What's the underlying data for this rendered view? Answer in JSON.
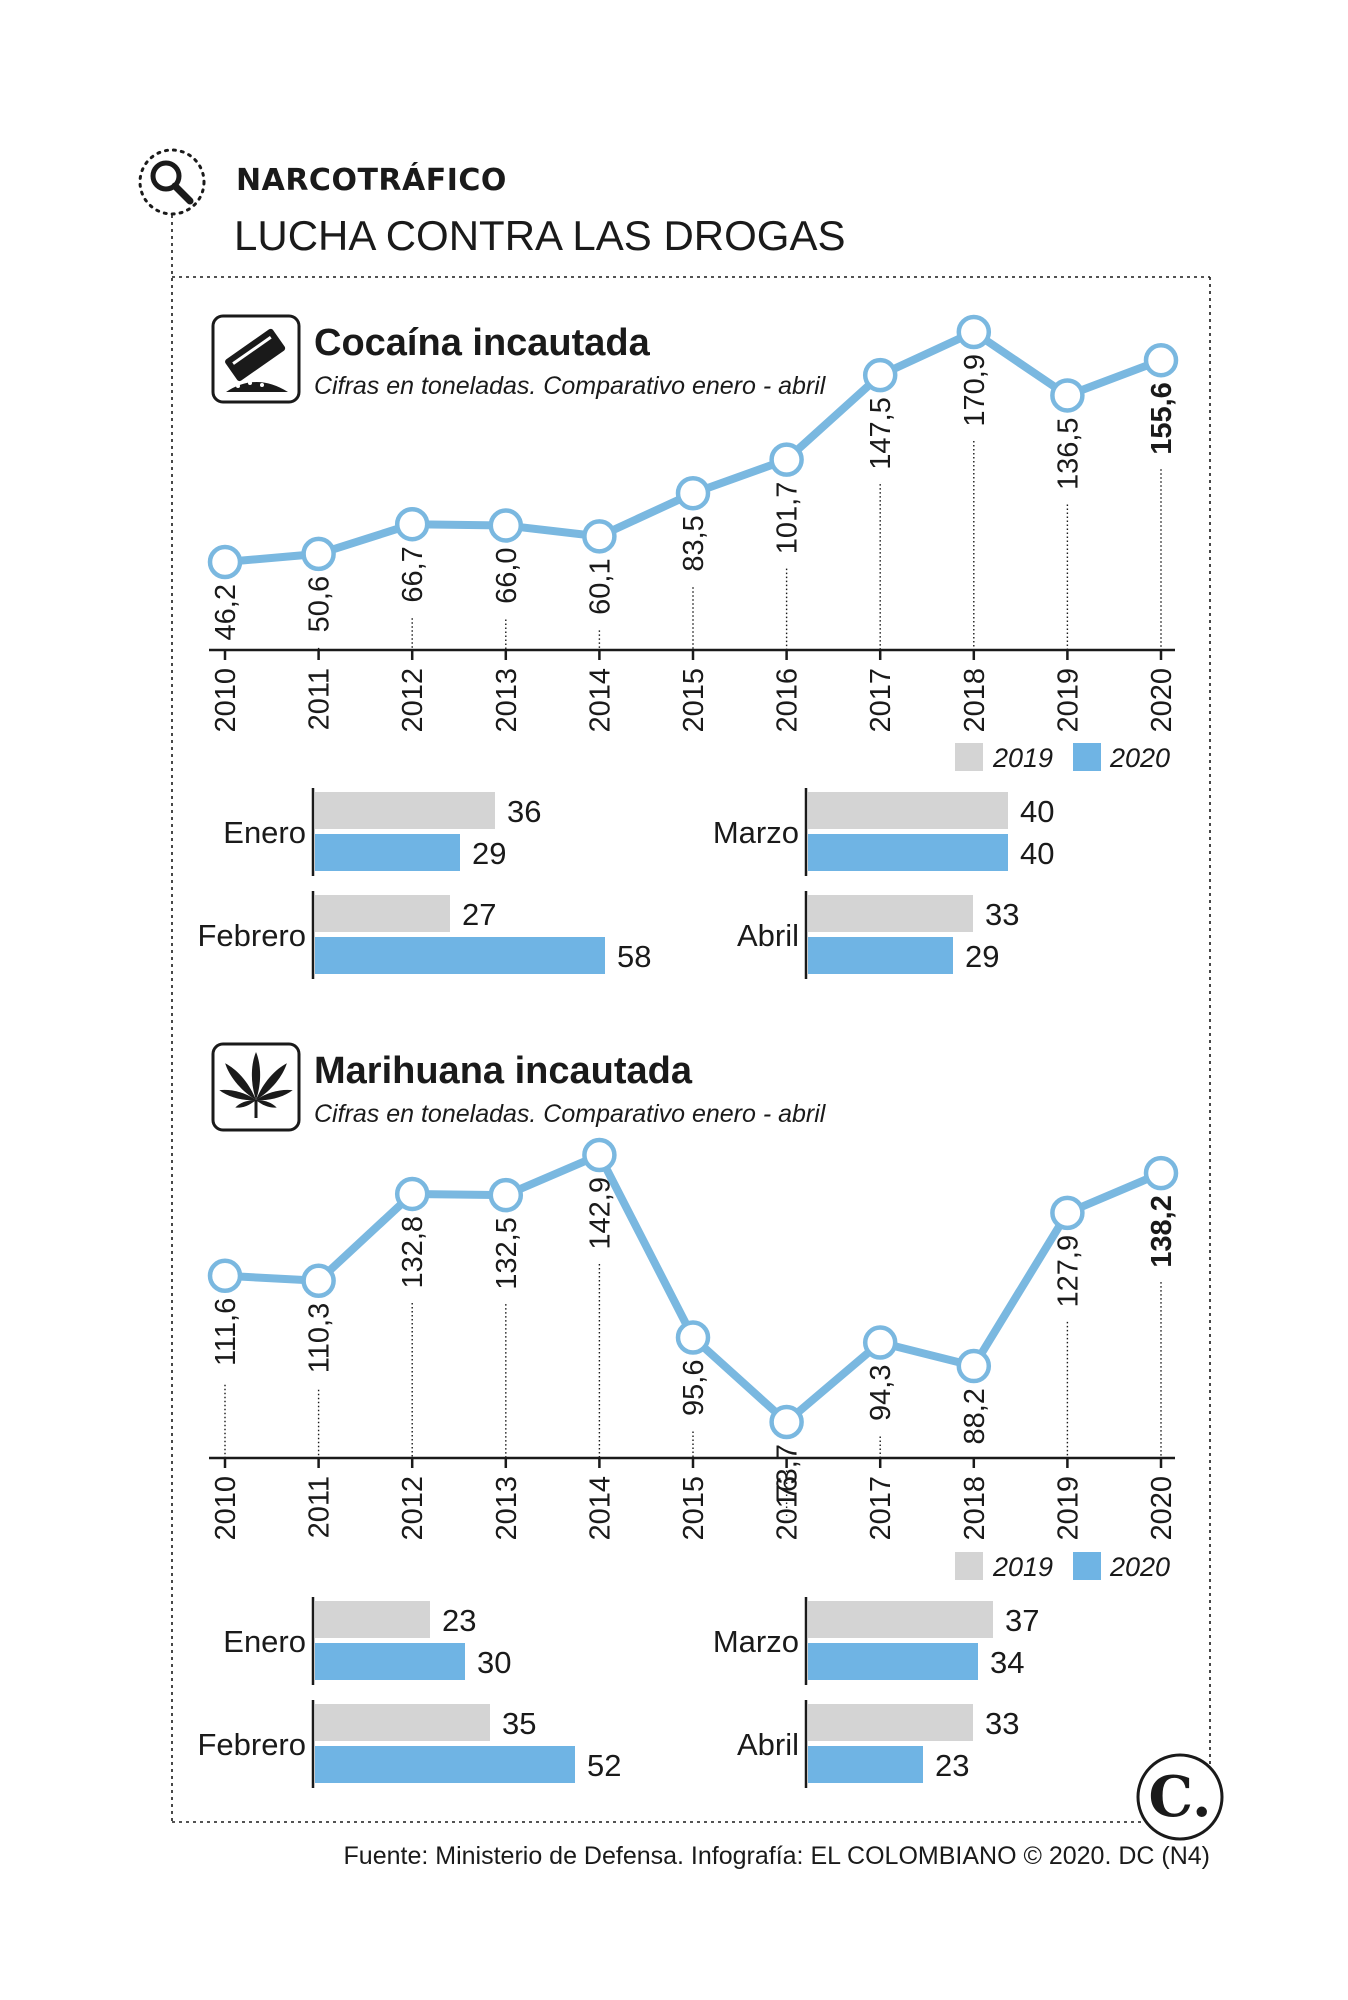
{
  "header": {
    "section": "NARCOTRÁFICO",
    "title": "LUCHA CONTRA LAS DROGAS"
  },
  "footer": {
    "source": "Fuente: Ministerio de Defensa. Infografía: EL COLOMBIANO © 2020. DC (N4)",
    "logo_letter": "C."
  },
  "colors": {
    "series_2019": "#d4d4d4",
    "series_2020": "#6fb4e4",
    "line": "#7ab8e0",
    "text": "#1a1a1a"
  },
  "legend": {
    "a": "2019",
    "b": "2020"
  },
  "chart_data": [
    {
      "type": "line",
      "title": "Cocaína incautada",
      "subtitle": "Cifras en toneladas. Comparativo enero - abril",
      "icon": "cocaine-block-icon",
      "x": [
        "2010",
        "2011",
        "2012",
        "2013",
        "2014",
        "2015",
        "2016",
        "2017",
        "2018",
        "2019",
        "2020"
      ],
      "values": [
        46.2,
        50.6,
        66.7,
        66.0,
        60.1,
        83.5,
        101.7,
        147.5,
        170.9,
        136.5,
        155.6
      ],
      "labels": [
        "46,2",
        "50,6",
        "66,7",
        "66,0",
        "60,1",
        "83,5",
        "101,7",
        "147,5",
        "170,9",
        "136,5",
        "155,6"
      ]
    },
    {
      "type": "bar",
      "categories": [
        "Enero",
        "Febrero",
        "Marzo",
        "Abril"
      ],
      "series": [
        {
          "name": "2019",
          "values": [
            36,
            27,
            40,
            33
          ]
        },
        {
          "name": "2020",
          "values": [
            29,
            58,
            40,
            29
          ]
        }
      ]
    },
    {
      "type": "line",
      "title": "Marihuana incautada",
      "subtitle": "Cifras en toneladas. Comparativo enero - abril",
      "icon": "cannabis-leaf-icon",
      "x": [
        "2010",
        "2011",
        "2012",
        "2013",
        "2014",
        "2015",
        "2016",
        "2017",
        "2018",
        "2019",
        "2020"
      ],
      "values": [
        111.6,
        110.3,
        132.8,
        132.5,
        142.9,
        95.6,
        73.7,
        94.3,
        88.2,
        127.9,
        138.2
      ],
      "labels": [
        "111,6",
        "110,3",
        "132,8",
        "132,5",
        "142,9",
        "95,6",
        "73,7",
        "94,3",
        "88,2",
        "127,9",
        "138,2"
      ]
    },
    {
      "type": "bar",
      "categories": [
        "Enero",
        "Febrero",
        "Marzo",
        "Abril"
      ],
      "series": [
        {
          "name": "2019",
          "values": [
            23,
            35,
            37,
            33
          ]
        },
        {
          "name": "2020",
          "values": [
            30,
            52,
            34,
            23
          ]
        }
      ]
    }
  ]
}
